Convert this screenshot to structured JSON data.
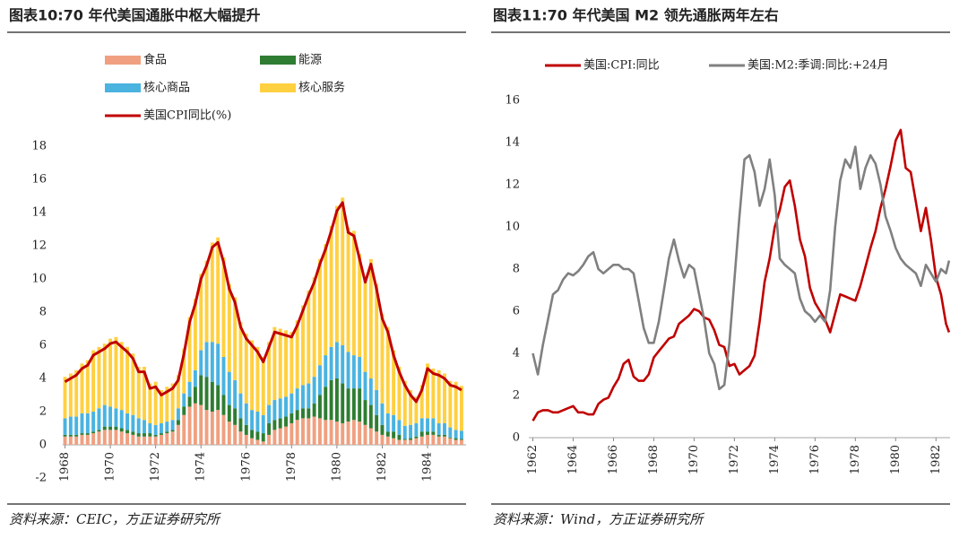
{
  "chart_data": [
    {
      "type": "bar",
      "stacked": true,
      "title": "图表10:70 年代美国通胀中枢大幅提升",
      "source": "资料来源：CEIC，方正证券研究所",
      "xlim": [
        1967.9,
        1985.7
      ],
      "xticks": [
        1968,
        1970,
        1972,
        1974,
        1976,
        1978,
        1980,
        1982,
        1984
      ],
      "ylim": [
        -2,
        18
      ],
      "yticks": [
        -2,
        0,
        2,
        4,
        6,
        8,
        10,
        12,
        14,
        16,
        18
      ],
      "x": [
        1968,
        1968.25,
        1968.5,
        1968.75,
        1969,
        1969.25,
        1969.5,
        1969.75,
        1970,
        1970.25,
        1970.5,
        1970.75,
        1971,
        1971.25,
        1971.5,
        1971.75,
        1972,
        1972.25,
        1972.5,
        1972.75,
        1973,
        1973.25,
        1973.5,
        1973.75,
        1974,
        1974.25,
        1974.5,
        1974.75,
        1975,
        1975.25,
        1975.5,
        1975.75,
        1976,
        1976.25,
        1976.5,
        1976.75,
        1977,
        1977.25,
        1977.5,
        1977.75,
        1978,
        1978.25,
        1978.5,
        1978.75,
        1979,
        1979.25,
        1979.5,
        1979.75,
        1980,
        1980.25,
        1980.5,
        1980.75,
        1981,
        1981.25,
        1981.5,
        1981.75,
        1982,
        1982.25,
        1982.5,
        1982.75,
        1983,
        1983.25,
        1983.5,
        1983.75,
        1984,
        1984.25,
        1984.5,
        1984.75,
        1985,
        1985.25,
        1985.5
      ],
      "series": [
        {
          "name": "食品",
          "color": "#f0a080",
          "values": [
            0.5,
            0.5,
            0.5,
            0.6,
            0.6,
            0.7,
            0.8,
            0.9,
            0.9,
            0.9,
            0.8,
            0.7,
            0.6,
            0.5,
            0.5,
            0.5,
            0.5,
            0.6,
            0.7,
            0.8,
            1.2,
            1.8,
            2.3,
            2.5,
            2.4,
            2.1,
            2.0,
            2.1,
            1.8,
            1.4,
            1.2,
            0.8,
            0.6,
            0.4,
            0.3,
            0.2,
            0.6,
            0.9,
            1.0,
            1.1,
            1.3,
            1.5,
            1.6,
            1.6,
            1.7,
            1.6,
            1.5,
            1.5,
            1.4,
            1.3,
            1.4,
            1.5,
            1.4,
            1.2,
            1.0,
            0.8,
            0.6,
            0.5,
            0.4,
            0.3,
            0.3,
            0.3,
            0.4,
            0.5,
            0.6,
            0.6,
            0.5,
            0.5,
            0.4,
            0.3,
            0.3
          ]
        },
        {
          "name": "能源",
          "color": "#2e7d32",
          "values": [
            0.1,
            0.1,
            0.1,
            0.1,
            0.1,
            0.1,
            0.1,
            0.2,
            0.2,
            0.2,
            0.2,
            0.2,
            0.2,
            0.2,
            0.2,
            0.2,
            0.1,
            0.1,
            0.1,
            0.1,
            0.3,
            0.5,
            0.6,
            1.0,
            1.8,
            2.0,
            1.8,
            1.5,
            1.2,
            1.0,
            1.0,
            0.8,
            0.6,
            0.5,
            0.5,
            0.5,
            0.7,
            0.6,
            0.6,
            0.6,
            0.6,
            0.6,
            0.6,
            0.6,
            0.8,
            1.4,
            2.0,
            2.4,
            2.6,
            2.4,
            2.0,
            1.9,
            2.0,
            1.5,
            1.4,
            1.0,
            0.6,
            0.3,
            0.4,
            0.3,
            0.05,
            0.1,
            0.1,
            0.3,
            0.2,
            0.2,
            0.1,
            0.1,
            0.05,
            0.1,
            0.05
          ]
        },
        {
          "name": "核心商品",
          "color": "#4ab3e0",
          "values": [
            1.0,
            1.1,
            1.1,
            1.2,
            1.2,
            1.2,
            1.3,
            1.3,
            1.2,
            1.1,
            1.1,
            1.0,
            1.0,
            0.9,
            0.8,
            0.6,
            0.6,
            0.6,
            0.6,
            0.6,
            0.7,
            0.8,
            0.9,
            1.0,
            1.5,
            2.1,
            2.4,
            2.5,
            2.3,
            2.0,
            1.7,
            1.5,
            1.3,
            1.2,
            1.2,
            1.1,
            1.1,
            1.2,
            1.2,
            1.2,
            1.2,
            1.3,
            1.4,
            1.5,
            1.6,
            1.8,
            1.9,
            2.0,
            2.2,
            2.3,
            2.2,
            2.0,
            1.9,
            1.7,
            1.6,
            1.5,
            1.3,
            1.1,
            1.0,
            0.9,
            0.8,
            0.8,
            0.8,
            0.8,
            0.8,
            0.8,
            0.7,
            0.7,
            0.6,
            0.5,
            0.5
          ]
        },
        {
          "name": "核心服务",
          "color": "#ffd040",
          "values": [
            2.5,
            2.6,
            2.8,
            3.0,
            3.2,
            3.7,
            3.7,
            3.7,
            4.1,
            4.3,
            4.1,
            4.0,
            3.7,
            3.1,
            3.2,
            2.4,
            2.6,
            2.0,
            2.1,
            2.2,
            2.0,
            2.7,
            3.9,
            4.3,
            4.6,
            4.9,
            6.0,
            6.4,
            6.0,
            5.3,
            5.0,
            4.3,
            4.2,
            4.2,
            3.9,
            3.5,
            3.8,
            4.4,
            4.2,
            4.0,
            3.7,
            4.1,
            4.8,
            5.6,
            6.0,
            6.4,
            6.7,
            7.3,
            8.2,
            8.9,
            7.5,
            7.5,
            6.2,
            5.7,
            7.2,
            6.4,
            5.4,
            5.2,
            3.9,
            3.2,
            2.7,
            2.1,
            1.6,
            2.0,
            3.3,
            3.0,
            3.2,
            3.0,
            2.8,
            2.9,
            2.7
          ]
        },
        {
          "name": "美国CPI同比(%)",
          "type": "line",
          "color": "#c00000",
          "values": [
            3.8,
            4.0,
            4.2,
            4.6,
            4.8,
            5.4,
            5.6,
            5.8,
            6.1,
            6.2,
            5.9,
            5.6,
            5.2,
            4.4,
            4.4,
            3.4,
            3.5,
            3.0,
            3.2,
            3.4,
            3.9,
            5.5,
            7.4,
            8.5,
            10.0,
            10.8,
            11.9,
            12.2,
            11.0,
            9.4,
            8.6,
            7.1,
            6.4,
            6.0,
            5.6,
            5.0,
            5.9,
            6.8,
            6.7,
            6.6,
            6.5,
            7.2,
            8.1,
            9.0,
            9.8,
            10.9,
            11.8,
            12.9,
            14.1,
            14.6,
            12.8,
            12.6,
            11.2,
            9.8,
            10.9,
            9.4,
            7.6,
            6.8,
            5.4,
            4.4,
            3.6,
            3.0,
            2.6,
            3.3,
            4.6,
            4.3,
            4.2,
            4.0,
            3.6,
            3.5,
            3.3
          ]
        }
      ]
    },
    {
      "type": "line",
      "title": "图表11:70 年代美国 M2 领先通胀两年左右",
      "source": "资料来源：Wind，方正证券研究所",
      "xlim": [
        1961.8,
        1982.7
      ],
      "xticks": [
        1962,
        1964,
        1966,
        1968,
        1970,
        1972,
        1974,
        1976,
        1978,
        1980,
        1982
      ],
      "ylim": [
        0,
        16
      ],
      "yticks": [
        0,
        2,
        4,
        6,
        8,
        10,
        12,
        14,
        16
      ],
      "x": [
        1962,
        1962.25,
        1962.5,
        1962.75,
        1963,
        1963.25,
        1963.5,
        1963.75,
        1964,
        1964.25,
        1964.5,
        1964.75,
        1965,
        1965.25,
        1965.5,
        1965.75,
        1966,
        1966.25,
        1966.5,
        1966.75,
        1967,
        1967.25,
        1967.5,
        1967.75,
        1968,
        1968.25,
        1968.5,
        1968.75,
        1969,
        1969.25,
        1969.5,
        1969.75,
        1970,
        1970.25,
        1970.5,
        1970.75,
        1971,
        1971.25,
        1971.5,
        1971.75,
        1972,
        1972.25,
        1972.5,
        1972.75,
        1973,
        1973.25,
        1973.5,
        1973.75,
        1974,
        1974.25,
        1974.5,
        1974.75,
        1975,
        1975.25,
        1975.5,
        1975.75,
        1976,
        1976.25,
        1976.5,
        1976.75,
        1977,
        1977.25,
        1977.5,
        1977.75,
        1978,
        1978.25,
        1978.5,
        1978.75,
        1979,
        1979.25,
        1979.5,
        1979.75,
        1980,
        1980.25,
        1980.5,
        1980.75,
        1981,
        1981.25,
        1981.5,
        1981.75,
        1982,
        1982.25,
        1982.5,
        1982.65
      ],
      "series": [
        {
          "name": "美国:CPI:同比",
          "color": "#c00000",
          "values": [
            0.8,
            1.2,
            1.3,
            1.3,
            1.2,
            1.2,
            1.3,
            1.4,
            1.5,
            1.2,
            1.2,
            1.1,
            1.1,
            1.6,
            1.8,
            1.9,
            2.4,
            2.8,
            3.5,
            3.7,
            2.9,
            2.7,
            2.7,
            3.0,
            3.8,
            4.1,
            4.4,
            4.7,
            4.8,
            5.4,
            5.6,
            5.8,
            6.1,
            6.0,
            5.7,
            5.6,
            5.1,
            4.4,
            4.3,
            3.4,
            3.5,
            3.0,
            3.2,
            3.4,
            3.9,
            5.5,
            7.4,
            8.5,
            10.0,
            10.8,
            11.9,
            12.2,
            11.0,
            9.4,
            8.6,
            7.1,
            6.4,
            6.0,
            5.6,
            5.0,
            5.9,
            6.8,
            6.7,
            6.6,
            6.5,
            7.2,
            8.1,
            9.0,
            9.8,
            10.9,
            11.8,
            12.9,
            14.1,
            14.6,
            12.8,
            12.6,
            11.2,
            9.8,
            10.9,
            9.4,
            7.6,
            6.8,
            5.4,
            5.0
          ]
        },
        {
          "name": "美国:M2:季调:同比:+24月",
          "color": "#808080",
          "values": [
            4.0,
            3.0,
            4.4,
            5.6,
            6.8,
            7.0,
            7.5,
            7.8,
            7.7,
            7.9,
            8.2,
            8.6,
            8.8,
            8.0,
            7.8,
            8.0,
            8.2,
            8.2,
            8.0,
            8.0,
            7.8,
            6.5,
            5.2,
            4.5,
            4.5,
            5.5,
            7.0,
            8.5,
            9.4,
            8.4,
            7.6,
            8.2,
            8.0,
            6.8,
            5.6,
            4.0,
            3.5,
            2.3,
            2.5,
            4.5,
            7.5,
            10.5,
            13.2,
            13.4,
            12.6,
            11.0,
            11.8,
            13.2,
            11.5,
            8.5,
            8.2,
            8.0,
            7.8,
            6.6,
            6.0,
            5.8,
            5.5,
            5.8,
            5.5,
            7.0,
            10.0,
            12.2,
            13.2,
            12.8,
            13.8,
            11.8,
            12.8,
            13.4,
            13.0,
            12.0,
            10.5,
            9.8,
            9.0,
            8.5,
            8.2,
            8.0,
            7.8,
            7.2,
            8.2,
            7.8,
            7.4,
            8.0,
            7.8,
            8.4
          ]
        }
      ]
    }
  ]
}
